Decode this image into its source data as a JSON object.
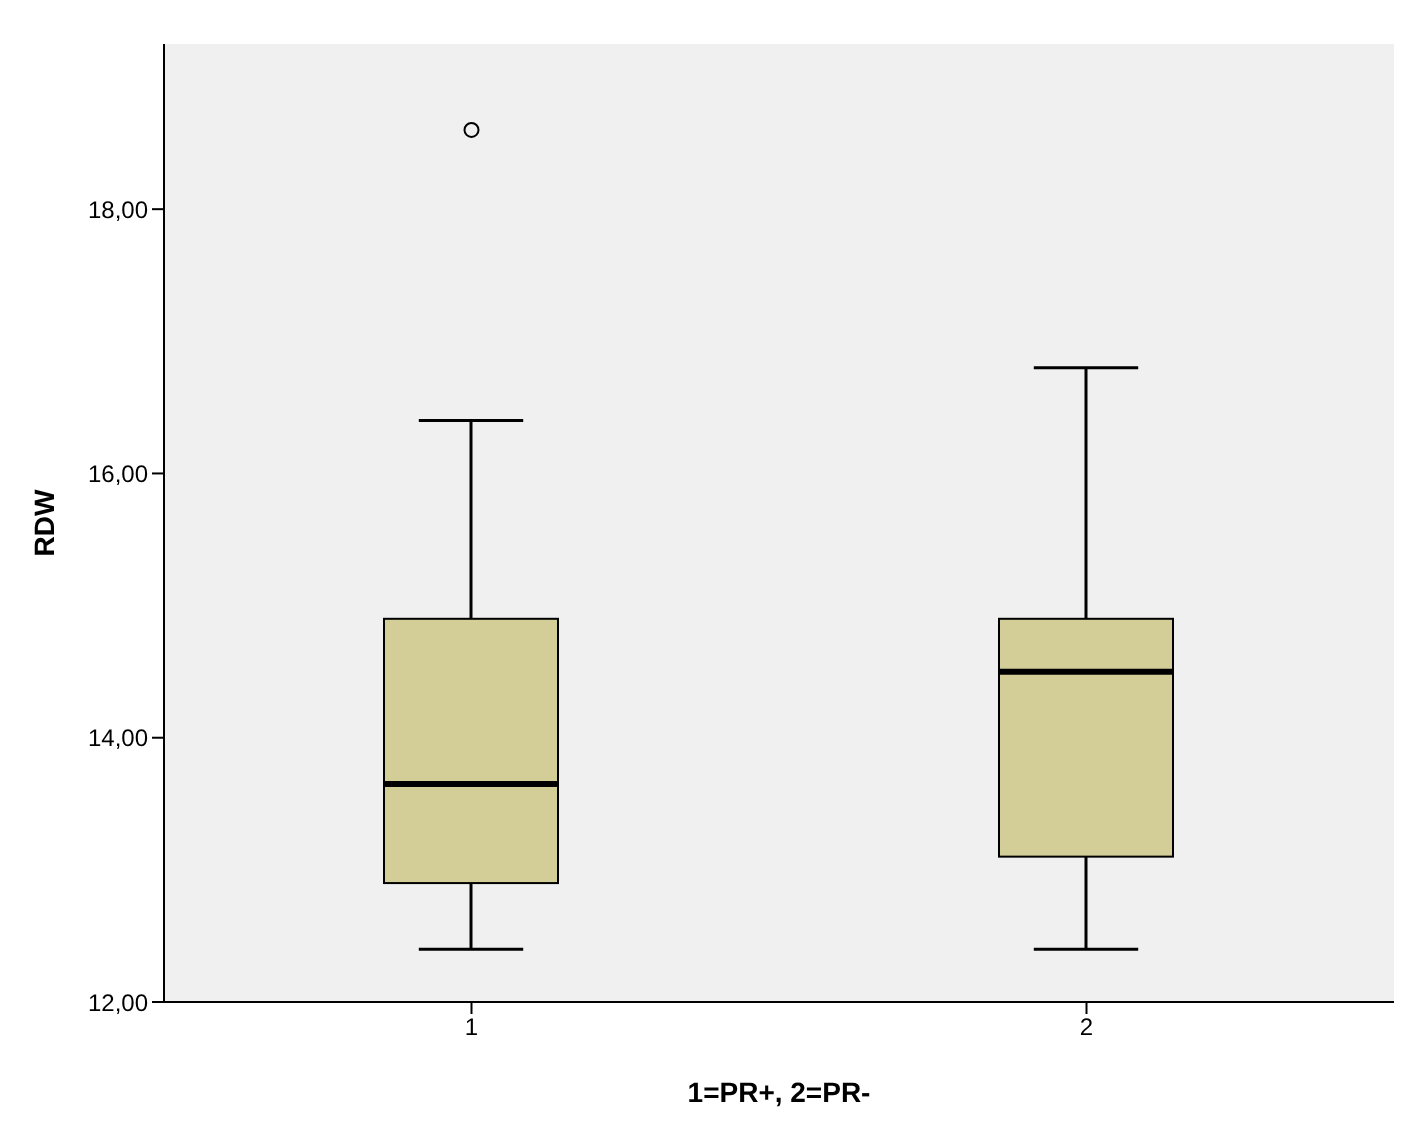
{
  "chart_data": {
    "type": "box",
    "xlabel": "1=PR+, 2=PR-",
    "ylabel": "RDW",
    "categories": [
      "1",
      "2"
    ],
    "color": "#d3ce97",
    "boxes": [
      {
        "low": 12.4,
        "q1": 12.9,
        "median": 13.65,
        "q3": 14.9,
        "high": 16.4,
        "outliers": [
          18.6
        ]
      },
      {
        "low": 12.4,
        "q1": 13.1,
        "median": 14.5,
        "q3": 14.9,
        "high": 16.8
      }
    ],
    "ylim": [
      12,
      19.25
    ],
    "yticks": [
      {
        "value": 12,
        "label": "12,00"
      },
      {
        "value": 14,
        "label": "14,00"
      },
      {
        "value": 16,
        "label": "16,00"
      },
      {
        "value": 18,
        "label": "18,00"
      }
    ],
    "grid": false
  }
}
